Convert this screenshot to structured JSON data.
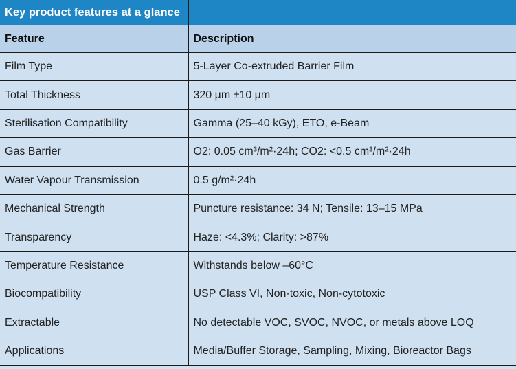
{
  "title": "Key product features at a glance",
  "columns": [
    "Feature",
    "Description"
  ],
  "rows": [
    {
      "feature": "Film Type",
      "description": "5-Layer Co-extruded Barrier Film"
    },
    {
      "feature": "Total Thickness",
      "description": "320 µm ±10 µm"
    },
    {
      "feature": "Sterilisation Compatibility",
      "description": "Gamma (25–40 kGy), ETO, e-Beam"
    },
    {
      "feature": "Gas Barrier",
      "description": "O2: 0.05 cm³/m²·24h; CO2: <0.5 cm³/m²·24h"
    },
    {
      "feature": "Water Vapour Transmission",
      "description": "0.5 g/m²·24h"
    },
    {
      "feature": "Mechanical Strength",
      "description": "Puncture resistance: 34 N; Tensile: 13–15 MPa"
    },
    {
      "feature": "Transparency",
      "description": "Haze: <4.3%; Clarity: >87%"
    },
    {
      "feature": "Temperature Resistance",
      "description": "Withstands below –60°C"
    },
    {
      "feature": "Biocompatibility",
      "description": "USP Class VI, Non-toxic, Non-cytotoxic"
    },
    {
      "feature": "Extractable",
      "description": "No detectable VOC, SVOC, NVOC, or metals above LOQ"
    },
    {
      "feature": "Applications",
      "description": "Media/Buffer Storage, Sampling, Mixing, Bioreactor Bags"
    }
  ]
}
